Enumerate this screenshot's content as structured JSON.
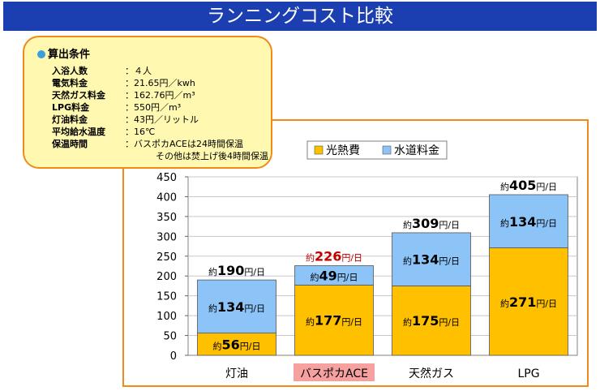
{
  "title": "ランニングコスト比較",
  "conditions": {
    "heading": "算出条件",
    "rows": [
      {
        "label": "入浴人数",
        "value": "：４人"
      },
      {
        "label": "電気料金",
        "value": "：21.65円／kwh"
      },
      {
        "label": "天然ガス料金",
        "value": "：162.76円／m³"
      },
      {
        "label": "LPG料金",
        "value": "：550円／m³"
      },
      {
        "label": "灯油料金",
        "value": "：43円／リットル"
      },
      {
        "label": "平均給水温度",
        "value": "：16℃"
      },
      {
        "label": "保温時間",
        "value": "：バスポカACEは24時間保温"
      }
    ],
    "continuation": "その他は焚上げ後4時間保温"
  },
  "chart_data": {
    "type": "bar",
    "stacked": true,
    "categories": [
      "灯油",
      "バスポカACE",
      "天然ガス",
      "LPG"
    ],
    "highlight_category": "バスポカACE",
    "highlight_bg": "#f6a0a0",
    "series": [
      {
        "name": "光熱費",
        "values": [
          56,
          177,
          175,
          271
        ],
        "color": "#ffc000"
      },
      {
        "name": "水道料金",
        "values": [
          134,
          49,
          134,
          134
        ],
        "color": "#8cc4f8"
      }
    ],
    "totals": [
      190,
      226,
      309,
      405
    ],
    "total_colors": [
      "#000000",
      "#c00000",
      "#000000",
      "#000000"
    ],
    "label_prefix": "約",
    "label_unit": "円/日",
    "yticks": [
      0,
      50,
      100,
      150,
      200,
      250,
      300,
      350,
      400,
      450
    ],
    "ylim": [
      0,
      450
    ],
    "grid": true,
    "legend_position": "top"
  }
}
